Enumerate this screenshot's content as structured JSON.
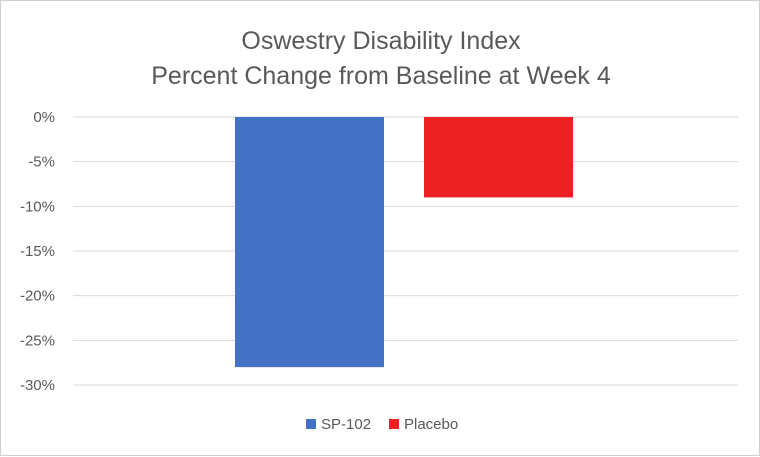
{
  "chart_data": {
    "type": "bar",
    "title": "Oswestry Disability Index",
    "subtitle": "Percent Change from Baseline at Week 4",
    "xlabel": "",
    "ylabel": "",
    "categories": [
      ""
    ],
    "series": [
      {
        "name": "SP-102",
        "values": [
          -28
        ],
        "color": "#4472C4"
      },
      {
        "name": "Placebo",
        "values": [
          -9
        ],
        "color": "#ED2024"
      }
    ],
    "ylim": [
      -30,
      0
    ],
    "yticks": [
      0,
      -5,
      -10,
      -15,
      -20,
      -25,
      -30
    ],
    "ytick_labels": [
      "0%",
      "-5%",
      "-10%",
      "-15%",
      "-20%",
      "-25%",
      "-30%"
    ],
    "grid": true,
    "legend_position": "bottom"
  }
}
